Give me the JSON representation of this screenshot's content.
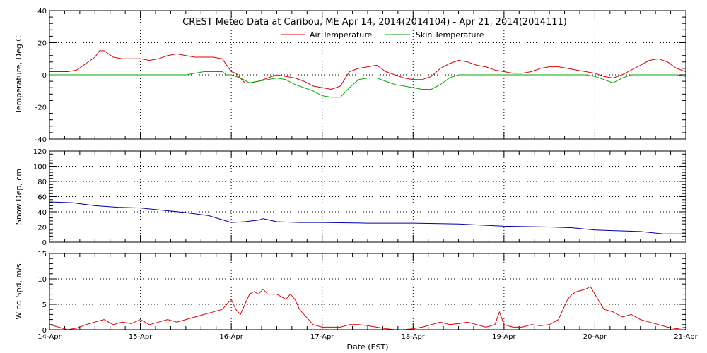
{
  "chart_data": [
    {
      "type": "line",
      "title": "CREST Meteo Data at Caribou, ME   Apr 14, 2014(2014104) - Apr 21, 2014(2014111)",
      "xlabel": "",
      "ylabel": "Temperature, Deg C",
      "ylim": [
        -40,
        40
      ],
      "yticks": [
        "40",
        "20",
        "0",
        "-20",
        "-40"
      ],
      "xlim": [
        0,
        7
      ],
      "grid": true,
      "legend": "top-center",
      "series": [
        {
          "name": "Air Temperature",
          "color": "#dd0000",
          "x": [
            0,
            0.2,
            0.3,
            0.4,
            0.5,
            0.55,
            0.6,
            0.65,
            0.7,
            0.8,
            0.9,
            1.0,
            1.1,
            1.2,
            1.3,
            1.4,
            1.5,
            1.6,
            1.7,
            1.8,
            1.9,
            1.95,
            2.0,
            2.05,
            2.1,
            2.15,
            2.2,
            2.3,
            2.4,
            2.5,
            2.6,
            2.7,
            2.8,
            2.9,
            3.0,
            3.1,
            3.2,
            3.3,
            3.4,
            3.5,
            3.6,
            3.7,
            3.8,
            3.9,
            4.0,
            4.1,
            4.2,
            4.3,
            4.4,
            4.5,
            4.6,
            4.7,
            4.8,
            4.9,
            5.0,
            5.1,
            5.2,
            5.3,
            5.4,
            5.5,
            5.6,
            5.7,
            5.8,
            5.9,
            6.0,
            6.1,
            6.2,
            6.3,
            6.4,
            6.5,
            6.6,
            6.7,
            6.8,
            6.9,
            7.0
          ],
          "y": [
            2,
            2,
            3,
            7,
            11,
            15,
            15,
            13,
            11,
            10,
            10,
            10,
            9,
            10,
            12,
            13,
            12,
            11,
            11,
            11,
            10,
            6,
            2,
            1,
            -2,
            -5,
            -5,
            -4,
            -2,
            0,
            -1,
            -2,
            -4,
            -7,
            -8,
            -9,
            -7,
            2,
            4,
            5,
            6,
            2,
            0,
            -2,
            -3,
            -3,
            -1,
            4,
            7,
            9,
            8,
            6,
            5,
            3,
            2,
            1,
            1,
            2,
            4,
            5,
            5,
            4,
            3,
            2,
            1,
            -1,
            -2,
            0,
            3,
            6,
            9,
            10,
            8,
            4,
            2
          ]
        },
        {
          "name": "Skin Temperature",
          "color": "#00aa00",
          "x": [
            0,
            0.3,
            0.5,
            0.7,
            1.0,
            1.3,
            1.5,
            1.6,
            1.7,
            1.8,
            1.9,
            1.95,
            2.0,
            2.1,
            2.2,
            2.3,
            2.4,
            2.5,
            2.6,
            2.7,
            2.8,
            2.9,
            3.0,
            3.1,
            3.15,
            3.2,
            3.3,
            3.4,
            3.5,
            3.6,
            3.7,
            3.8,
            3.9,
            4.0,
            4.1,
            4.2,
            4.3,
            4.4,
            4.5,
            5.0,
            5.5,
            5.9,
            6.0,
            6.1,
            6.2,
            6.3,
            6.4,
            6.6,
            6.8,
            6.9,
            7.0
          ],
          "y": [
            0,
            0,
            0,
            0,
            0,
            0,
            0,
            1,
            2,
            2,
            2,
            0,
            0,
            -2,
            -5,
            -4,
            -3,
            -2,
            -3,
            -6,
            -8,
            -10,
            -13,
            -14,
            -14,
            -14,
            -8,
            -3,
            -2,
            -2,
            -4,
            -6,
            -7,
            -8,
            -9,
            -9,
            -6,
            -2,
            0,
            0,
            0,
            0,
            -1,
            -3,
            -5,
            -2,
            0,
            0,
            0,
            0,
            -1
          ]
        }
      ]
    },
    {
      "type": "line",
      "title": "",
      "xlabel": "",
      "ylabel": "Snow Dep, cm",
      "ylim": [
        0,
        120
      ],
      "yticks": [
        "120",
        "100",
        "80",
        "60",
        "40",
        "20",
        "0"
      ],
      "xlim": [
        0,
        7
      ],
      "grid": true,
      "series": [
        {
          "name": "",
          "color": "#0000aa",
          "x": [
            0,
            0.25,
            0.5,
            0.75,
            1.0,
            1.25,
            1.5,
            1.75,
            2.0,
            2.15,
            2.3,
            2.35,
            2.5,
            2.75,
            3.0,
            3.5,
            4.0,
            4.5,
            5.0,
            5.5,
            5.75,
            6.0,
            6.25,
            6.5,
            6.75,
            7.0
          ],
          "y": [
            53,
            52,
            48,
            46,
            45,
            42,
            39,
            35,
            26,
            27,
            29,
            31,
            27,
            26,
            26,
            25,
            25,
            24,
            21,
            20,
            19,
            16,
            15,
            14,
            11,
            11
          ]
        }
      ]
    },
    {
      "type": "line",
      "title": "",
      "xlabel": "Date (EST)",
      "ylabel": "Wind Spd, m/s",
      "ylim": [
        0,
        15
      ],
      "yticks": [
        "15",
        "10",
        "5",
        "0"
      ],
      "xlim": [
        0,
        7
      ],
      "xticks": [
        "14-Apr",
        "15-Apr",
        "16-Apr",
        "17-Apr",
        "18-Apr",
        "19-Apr",
        "20-Apr",
        "21-Apr"
      ],
      "grid": true,
      "series": [
        {
          "name": "",
          "color": "#dd0000",
          "x": [
            0,
            0.1,
            0.2,
            0.3,
            0.4,
            0.5,
            0.6,
            0.7,
            0.8,
            0.9,
            1.0,
            1.1,
            1.2,
            1.3,
            1.4,
            1.5,
            1.6,
            1.7,
            1.8,
            1.9,
            1.95,
            2.0,
            2.05,
            2.1,
            2.15,
            2.2,
            2.25,
            2.3,
            2.35,
            2.4,
            2.5,
            2.6,
            2.65,
            2.7,
            2.75,
            2.8,
            2.9,
            3.0,
            3.1,
            3.2,
            3.3,
            3.4,
            3.5,
            3.6,
            3.7,
            3.8,
            3.9,
            4.0,
            4.1,
            4.2,
            4.3,
            4.4,
            4.5,
            4.6,
            4.7,
            4.8,
            4.9,
            4.95,
            5.0,
            5.1,
            5.2,
            5.3,
            5.4,
            5.5,
            5.6,
            5.7,
            5.75,
            5.8,
            5.9,
            5.95,
            6.0,
            6.1,
            6.2,
            6.3,
            6.4,
            6.5,
            6.6,
            6.7,
            6.8,
            6.9,
            7.0
          ],
          "y": [
            1,
            0.5,
            0,
            0.3,
            1,
            1.5,
            2,
            1,
            1.5,
            1.2,
            2,
            1,
            1.5,
            2,
            1.5,
            2,
            2.5,
            3,
            3.5,
            4,
            5,
            6,
            4,
            3,
            5,
            7,
            7.5,
            7,
            8,
            7,
            7,
            6,
            7,
            6,
            4,
            3,
            1,
            0.5,
            0.5,
            0.5,
            1,
            1,
            0.8,
            0.5,
            0.2,
            0,
            0,
            0.2,
            0.5,
            1,
            1.5,
            1,
            1.2,
            1.5,
            1,
            0.5,
            1,
            3.5,
            1,
            0.5,
            0.5,
            1,
            0.8,
            1,
            2,
            6,
            7,
            7.5,
            8,
            8.5,
            7,
            4,
            3.5,
            2.5,
            3,
            2,
            1.5,
            1,
            0.5,
            0.2,
            0.5
          ]
        }
      ]
    }
  ]
}
